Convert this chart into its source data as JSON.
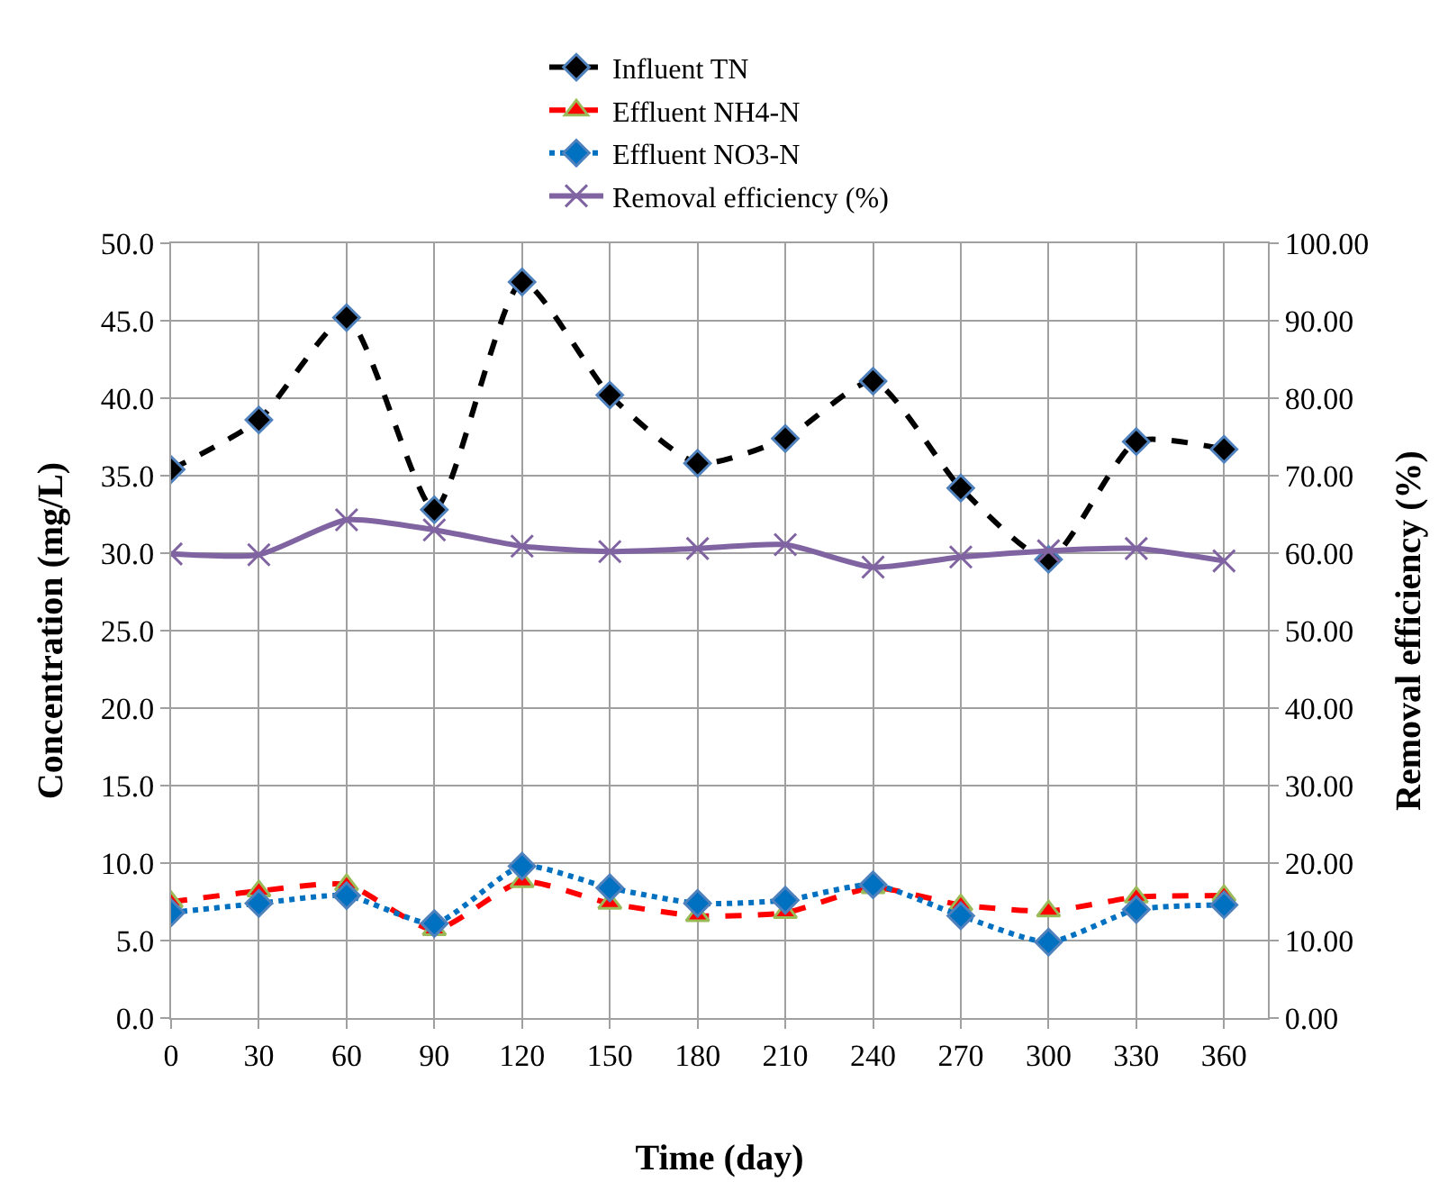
{
  "chart_data": {
    "type": "line",
    "xlabel": "Time (day)",
    "ylabel": "Concentration (mg/L)",
    "y2label": "Removal efficiency (%)",
    "x": [
      0,
      30,
      60,
      90,
      120,
      150,
      180,
      210,
      240,
      270,
      300,
      330,
      360
    ],
    "series": [
      {
        "name": "Influent TN",
        "color": "#000000",
        "marker": "diamond",
        "line_style": "dashed",
        "values": [
          35.4,
          38.6,
          45.2,
          32.8,
          47.5,
          40.2,
          35.8,
          37.4,
          41.1,
          34.2,
          29.6,
          37.2,
          36.7
        ]
      },
      {
        "name": "Effluent NH4-N",
        "color": "#ff0000",
        "marker": "triangle",
        "line_style": "dashed",
        "values": [
          7.5,
          8.2,
          8.6,
          5.7,
          8.8,
          7.4,
          6.6,
          6.8,
          8.4,
          7.3,
          6.9,
          7.8,
          7.9
        ]
      },
      {
        "name": "Effluent NO3-N",
        "color": "#0070c0",
        "marker": "diamond",
        "line_style": "dotted",
        "values": [
          6.8,
          7.4,
          7.9,
          6.1,
          9.8,
          8.4,
          7.4,
          7.6,
          8.6,
          6.6,
          4.9,
          7.0,
          7.3
        ]
      },
      {
        "name": "Removal efficiency (%)",
        "color": "#8064a2",
        "marker": "cross",
        "line_style": "solid",
        "axis": "y2",
        "values": [
          59.9,
          59.8,
          64.3,
          63.0,
          60.9,
          60.2,
          60.6,
          61.1,
          58.2,
          59.5,
          60.3,
          60.6,
          59.0
        ]
      }
    ],
    "xlim": [
      0,
      375
    ],
    "xticks": [
      0,
      30,
      60,
      90,
      120,
      150,
      180,
      210,
      240,
      270,
      300,
      330,
      360
    ],
    "ylim": [
      0,
      50
    ],
    "yticks": [
      {
        "value": 0,
        "label": "0.0"
      },
      {
        "value": 5,
        "label": "5.0"
      },
      {
        "value": 10,
        "label": "10.0"
      },
      {
        "value": 15,
        "label": "15.0"
      },
      {
        "value": 20,
        "label": "20.0"
      },
      {
        "value": 25,
        "label": "25.0"
      },
      {
        "value": 30,
        "label": "30.0"
      },
      {
        "value": 35,
        "label": "35.0"
      },
      {
        "value": 40,
        "label": "40.0"
      },
      {
        "value": 45,
        "label": "45.0"
      },
      {
        "value": 50,
        "label": "50.0"
      }
    ],
    "y2lim": [
      0,
      100
    ],
    "y2ticks": [
      {
        "value": 0,
        "label": "0.00"
      },
      {
        "value": 10,
        "label": "10.00"
      },
      {
        "value": 20,
        "label": "20.00"
      },
      {
        "value": 30,
        "label": "30.00"
      },
      {
        "value": 40,
        "label": "40.00"
      },
      {
        "value": 50,
        "label": "50.00"
      },
      {
        "value": 60,
        "label": "60.00"
      },
      {
        "value": 70,
        "label": "70.00"
      },
      {
        "value": 80,
        "label": "80.00"
      },
      {
        "value": 90,
        "label": "90.00"
      },
      {
        "value": 100,
        "label": "100.00"
      }
    ],
    "grid": true,
    "legend": "top"
  }
}
